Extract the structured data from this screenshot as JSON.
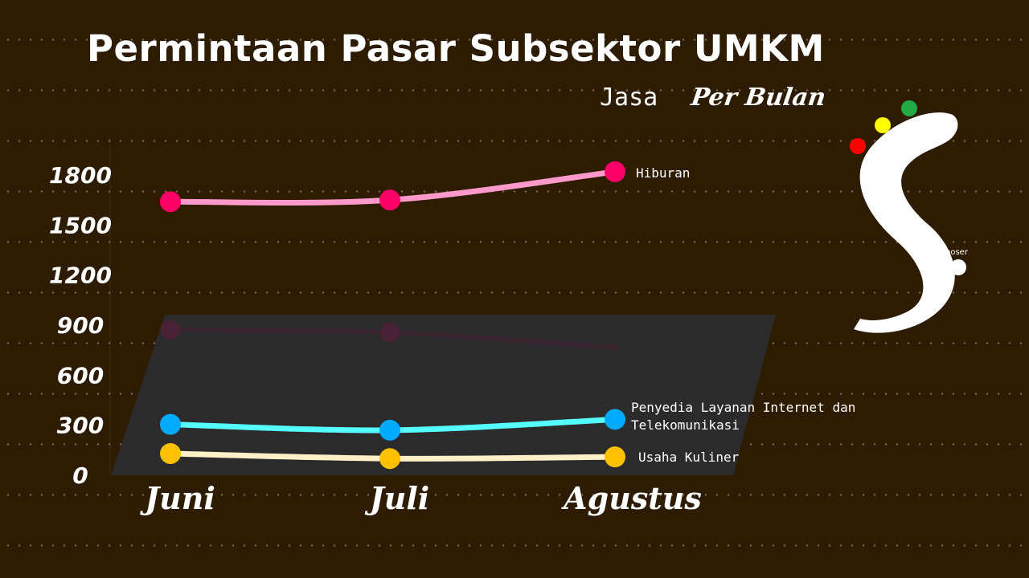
{
  "header": {
    "title": "Permintaan Pasar Subsektor UMKM",
    "subtitle_category": "Jasa",
    "subtitle_period": "Per Bulan"
  },
  "logo": {
    "text": "poser",
    "dot_colors": [
      "#ff0000",
      "#ffff00",
      "#22aa44"
    ]
  },
  "colors": {
    "background": "#2e1c00",
    "panel": "#2b2b2b"
  },
  "chart_data": {
    "type": "line",
    "categories": [
      "Juni",
      "Juli",
      "Agustus"
    ],
    "y_ticks": [
      0,
      300,
      600,
      900,
      1200,
      1500,
      1800
    ],
    "ylim": [
      0,
      1900
    ],
    "grid": false,
    "series": [
      {
        "name": "Hiburan",
        "values": [
          1640,
          1650,
          1820
        ],
        "line_color": "#ff99cc",
        "point_color": "#ff0066"
      },
      {
        "name": "Penyedia Layanan Internet dan Telekomunikasi",
        "values": [
          305,
          270,
          335
        ],
        "line_color": "#55ffff",
        "point_color": "#00aaff"
      },
      {
        "name": "Usaha Kuliner",
        "values": [
          130,
          100,
          110
        ],
        "line_color": "#fff0c8",
        "point_color": "#ffc000"
      }
    ]
  }
}
